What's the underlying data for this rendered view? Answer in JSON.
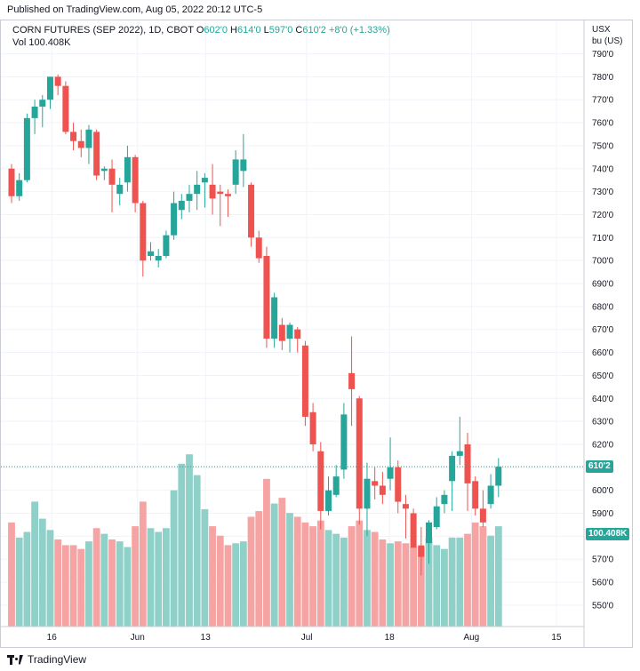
{
  "header": {
    "published": "Published on TradingView.com, Aug 05, 2022 20:12 UTC-5"
  },
  "legend": {
    "symbol": "CORN FUTURES (SEP 2022), 1D, CBOT",
    "o_label": "O",
    "o_value": "602'0",
    "h_label": "H",
    "h_value": "614'0",
    "l_label": "L",
    "l_value": "597'0",
    "c_label": "C",
    "c_value": "610'2",
    "change": "+8'0 (+1.33%)",
    "vol_label": "Vol",
    "vol_value": "100.408K"
  },
  "axis": {
    "unit_line1": "USX",
    "unit_line2": "bu (US)",
    "price_badge": "610'2",
    "volume_badge": "100.408K"
  },
  "footer": {
    "brand": "TradingView"
  },
  "colors": {
    "up": "#26a69a",
    "down": "#ef5350",
    "up_vol": "#8fd0c8",
    "down_vol": "#f5a3a3"
  },
  "chart_data": {
    "type": "candlestick",
    "symbol": "CORN FUTURES (SEP 2022)",
    "interval": "1D",
    "exchange": "CBOT",
    "unit": "USX/bu (US)",
    "ylim": [
      540,
      795
    ],
    "y_ticks": [
      "550'0",
      "560'0",
      "570'0",
      "580'0",
      "590'0",
      "600'0",
      "610'0",
      "620'0",
      "630'0",
      "640'0",
      "650'0",
      "660'0",
      "670'0",
      "680'0",
      "690'0",
      "700'0",
      "710'0",
      "720'0",
      "730'0",
      "740'0",
      "750'0",
      "760'0",
      "770'0",
      "780'0",
      "790'0"
    ],
    "x_ticks": [
      "16",
      "Jun",
      "13",
      "Jul",
      "18",
      "Aug",
      "15"
    ],
    "last_close": 610.25,
    "grid": true,
    "candles": [
      {
        "o": 740,
        "h": 742,
        "l": 725,
        "c": 728,
        "v": 5500
      },
      {
        "o": 728,
        "h": 738,
        "l": 726,
        "c": 735,
        "v": 4700
      },
      {
        "o": 735,
        "h": 764,
        "l": 734,
        "c": 762,
        "v": 5000
      },
      {
        "o": 762,
        "h": 770,
        "l": 755,
        "c": 767,
        "v": 6600
      },
      {
        "o": 767,
        "h": 772,
        "l": 758,
        "c": 770,
        "v": 5700
      },
      {
        "o": 770,
        "h": 780,
        "l": 766,
        "c": 780,
        "v": 5100
      },
      {
        "o": 780,
        "h": 781,
        "l": 772,
        "c": 776,
        "v": 4600
      },
      {
        "o": 776,
        "h": 778,
        "l": 755,
        "c": 756,
        "v": 4300
      },
      {
        "o": 756,
        "h": 760,
        "l": 748,
        "c": 752,
        "v": 4300
      },
      {
        "o": 752,
        "h": 757,
        "l": 745,
        "c": 749,
        "v": 4100
      },
      {
        "o": 749,
        "h": 759,
        "l": 742,
        "c": 757,
        "v": 4500
      },
      {
        "o": 756,
        "h": 757,
        "l": 735,
        "c": 737,
        "v": 5200
      },
      {
        "o": 739,
        "h": 741,
        "l": 735,
        "c": 740,
        "v": 4900
      },
      {
        "o": 740,
        "h": 744,
        "l": 721,
        "c": 733,
        "v": 4600
      },
      {
        "o": 729,
        "h": 736,
        "l": 724,
        "c": 733,
        "v": 4500
      },
      {
        "o": 734,
        "h": 750,
        "l": 730,
        "c": 745,
        "v": 4200
      },
      {
        "o": 745,
        "h": 746,
        "l": 721,
        "c": 725,
        "v": 5300
      },
      {
        "o": 725,
        "h": 726,
        "l": 693,
        "c": 700,
        "v": 6600
      },
      {
        "o": 702,
        "h": 708,
        "l": 700,
        "c": 704,
        "v": 5200
      },
      {
        "o": 700,
        "h": 705,
        "l": 697,
        "c": 702,
        "v": 5000
      },
      {
        "o": 702,
        "h": 713,
        "l": 701,
        "c": 711,
        "v": 5200
      },
      {
        "o": 711,
        "h": 730,
        "l": 709,
        "c": 725,
        "v": 7200
      },
      {
        "o": 722,
        "h": 729,
        "l": 718,
        "c": 726,
        "v": 8600
      },
      {
        "o": 726,
        "h": 733,
        "l": 721,
        "c": 729,
        "v": 9100
      },
      {
        "o": 729,
        "h": 739,
        "l": 722,
        "c": 733,
        "v": 8000
      },
      {
        "o": 734,
        "h": 738,
        "l": 723,
        "c": 736,
        "v": 6200
      },
      {
        "o": 733,
        "h": 742,
        "l": 720,
        "c": 727,
        "v": 5300
      },
      {
        "o": 730,
        "h": 733,
        "l": 715,
        "c": 729,
        "v": 4800
      },
      {
        "o": 729,
        "h": 731,
        "l": 719,
        "c": 728,
        "v": 4300
      },
      {
        "o": 733,
        "h": 748,
        "l": 729,
        "c": 744,
        "v": 4400
      },
      {
        "o": 739,
        "h": 755,
        "l": 732,
        "c": 744,
        "v": 4500
      },
      {
        "o": 733,
        "h": 734,
        "l": 706,
        "c": 710,
        "v": 5800
      },
      {
        "o": 710,
        "h": 713,
        "l": 699,
        "c": 701,
        "v": 6100
      },
      {
        "o": 702,
        "h": 706,
        "l": 662,
        "c": 666,
        "v": 7800
      },
      {
        "o": 666,
        "h": 686,
        "l": 662,
        "c": 684,
        "v": 6500
      },
      {
        "o": 672,
        "h": 675,
        "l": 661,
        "c": 665,
        "v": 6800
      },
      {
        "o": 666,
        "h": 673,
        "l": 660,
        "c": 672,
        "v": 6000
      },
      {
        "o": 670,
        "h": 671,
        "l": 660,
        "c": 666,
        "v": 5800
      },
      {
        "o": 663,
        "h": 665,
        "l": 628,
        "c": 632,
        "v": 5500
      },
      {
        "o": 634,
        "h": 638,
        "l": 617,
        "c": 620,
        "v": 5300
      },
      {
        "o": 617,
        "h": 621,
        "l": 583,
        "c": 591,
        "v": 5600
      },
      {
        "o": 591,
        "h": 606,
        "l": 589,
        "c": 600,
        "v": 5100
      },
      {
        "o": 598,
        "h": 611,
        "l": 597,
        "c": 606,
        "v": 4900
      },
      {
        "o": 609,
        "h": 638,
        "l": 605,
        "c": 633,
        "v": 4700
      },
      {
        "o": 651,
        "h": 667,
        "l": 628,
        "c": 644,
        "v": 5300
      },
      {
        "o": 640,
        "h": 641,
        "l": 585,
        "c": 592,
        "v": 5600
      },
      {
        "o": 592,
        "h": 612,
        "l": 580,
        "c": 605,
        "v": 5100
      },
      {
        "o": 604,
        "h": 610,
        "l": 596,
        "c": 602,
        "v": 5000
      },
      {
        "o": 602,
        "h": 608,
        "l": 594,
        "c": 598,
        "v": 4600
      },
      {
        "o": 605,
        "h": 623,
        "l": 600,
        "c": 610,
        "v": 4400
      },
      {
        "o": 610,
        "h": 613,
        "l": 590,
        "c": 595,
        "v": 4500
      },
      {
        "o": 594,
        "h": 598,
        "l": 579,
        "c": 592,
        "v": 4400
      },
      {
        "o": 590,
        "h": 592,
        "l": 575,
        "c": 575,
        "v": 4200
      },
      {
        "o": 576,
        "h": 584,
        "l": 563,
        "c": 571,
        "v": 4200
      },
      {
        "o": 577,
        "h": 587,
        "l": 568,
        "c": 586,
        "v": 4700
      },
      {
        "o": 584,
        "h": 597,
        "l": 583,
        "c": 593,
        "v": 4300
      },
      {
        "o": 594,
        "h": 600,
        "l": 590,
        "c": 598,
        "v": 4100
      },
      {
        "o": 604,
        "h": 617,
        "l": 591,
        "c": 615,
        "v": 4700
      },
      {
        "o": 615,
        "h": 632,
        "l": 611,
        "c": 617,
        "v": 4700
      },
      {
        "o": 620,
        "h": 625,
        "l": 591,
        "c": 603,
        "v": 4900
      },
      {
        "o": 604,
        "h": 606,
        "l": 589,
        "c": 592,
        "v": 5500
      },
      {
        "o": 592,
        "h": 600,
        "l": 584,
        "c": 586,
        "v": 5300
      },
      {
        "o": 594,
        "h": 607,
        "l": 592,
        "c": 602,
        "v": 4800
      },
      {
        "o": 602,
        "h": 614,
        "l": 597,
        "c": 610.25,
        "v": 5300
      }
    ]
  }
}
